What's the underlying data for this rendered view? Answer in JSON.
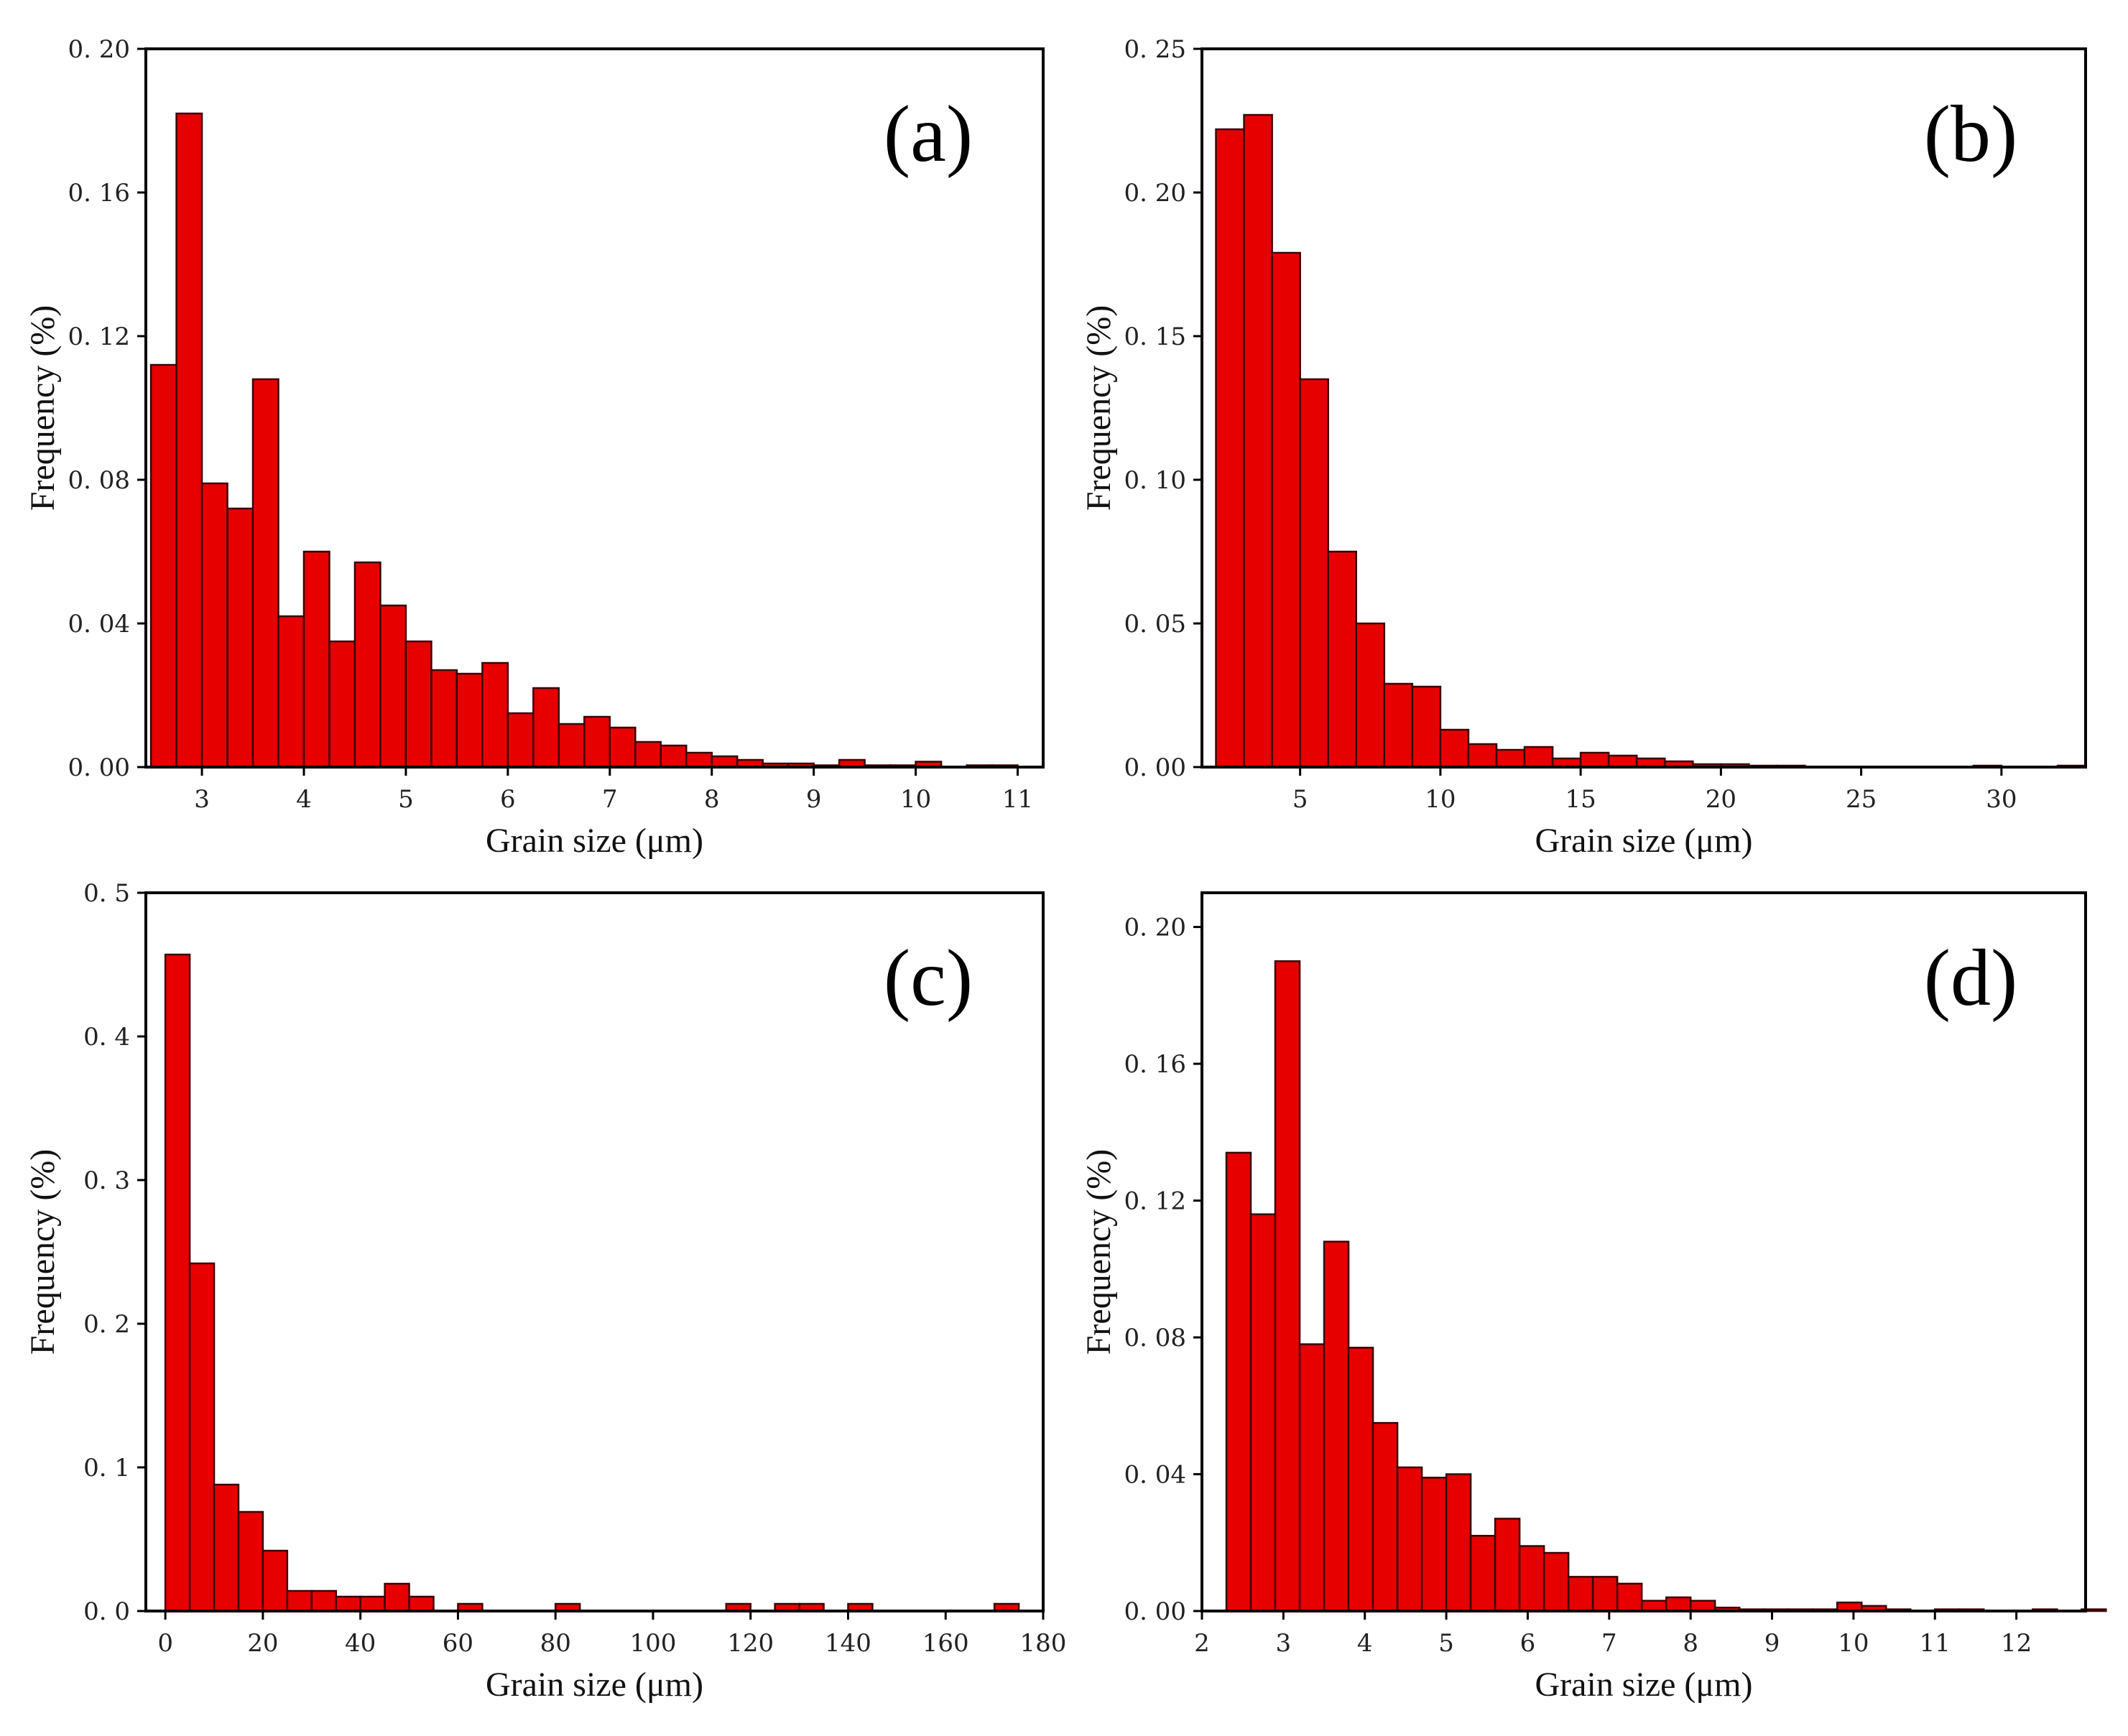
{
  "figure": {
    "panels": [
      "a",
      "b",
      "c",
      "d"
    ]
  },
  "chart_data": [
    {
      "id": "a",
      "type": "bar",
      "panel_label": "(a)",
      "xlabel": "Grain size (μm)",
      "ylabel": "Frequency (%)",
      "xlim": [
        2.45,
        11.25
      ],
      "ylim": [
        0,
        0.2
      ],
      "xticks": [
        3,
        4,
        5,
        6,
        7,
        8,
        9,
        10,
        11
      ],
      "xtick_labels": [
        "3",
        "4",
        "5",
        "6",
        "7",
        "8",
        "9",
        "10",
        "11"
      ],
      "yticks": [
        0,
        0.04,
        0.08,
        0.12,
        0.16,
        0.2
      ],
      "ytick_labels": [
        "0. 00",
        "0. 04",
        "0. 08",
        "0. 12",
        "0. 16",
        "0. 20"
      ],
      "bin_start": 2.5,
      "bin_width": 0.25,
      "values": [
        0.112,
        0.182,
        0.079,
        0.072,
        0.108,
        0.042,
        0.06,
        0.035,
        0.057,
        0.045,
        0.035,
        0.027,
        0.026,
        0.029,
        0.015,
        0.022,
        0.012,
        0.014,
        0.011,
        0.007,
        0.006,
        0.004,
        0.003,
        0.002,
        0.001,
        0.001,
        0.0005,
        0.002,
        0.0005,
        0.0005,
        0.0015,
        0.0,
        0.0005,
        0.0005
      ]
    },
    {
      "id": "b",
      "type": "bar",
      "panel_label": "(b)",
      "xlabel": "Grain size (μm)",
      "ylabel": "Frequency (%)",
      "xlim": [
        1.5,
        33
      ],
      "ylim": [
        0,
        0.25
      ],
      "xticks": [
        5,
        10,
        15,
        20,
        25,
        30
      ],
      "xtick_labels": [
        "5",
        "10",
        "15",
        "20",
        "25",
        "30"
      ],
      "yticks": [
        0,
        0.05,
        0.1,
        0.15,
        0.2,
        0.25
      ],
      "ytick_labels": [
        "0. 00",
        "0. 05",
        "0. 10",
        "0. 15",
        "0. 20",
        "0. 25"
      ],
      "bin_start": 2,
      "bin_width": 1,
      "values": [
        0.222,
        0.227,
        0.179,
        0.135,
        0.075,
        0.05,
        0.029,
        0.028,
        0.013,
        0.008,
        0.006,
        0.007,
        0.003,
        0.005,
        0.004,
        0.003,
        0.002,
        0.001,
        0.001,
        0.0005,
        0.0005,
        0.0,
        0.0,
        0.0,
        0.0,
        0.0,
        0.0,
        0.0005,
        0.0,
        0.0,
        0.0005
      ]
    },
    {
      "id": "c",
      "type": "bar",
      "panel_label": "(c)",
      "xlabel": "Grain size (μm)",
      "ylabel": "Frequency (%)",
      "xlim": [
        -4,
        180
      ],
      "ylim": [
        0,
        0.5
      ],
      "xticks": [
        0,
        20,
        40,
        60,
        80,
        100,
        120,
        140,
        160,
        180
      ],
      "xtick_labels": [
        "0",
        "20",
        "40",
        "60",
        "80",
        "100",
        "120",
        "140",
        "160",
        "180"
      ],
      "yticks": [
        0,
        0.1,
        0.2,
        0.3,
        0.4,
        0.5
      ],
      "ytick_labels": [
        "0. 0",
        "0. 1",
        "0. 2",
        "0. 3",
        "0. 4",
        "0. 5"
      ],
      "bin_start": 0,
      "bin_width": 5,
      "values": [
        0.457,
        0.242,
        0.088,
        0.069,
        0.042,
        0.014,
        0.014,
        0.01,
        0.01,
        0.019,
        0.01,
        0.0,
        0.005,
        0.0,
        0.0,
        0.0,
        0.005,
        0.0,
        0.0,
        0.0,
        0.0,
        0.0,
        0.0,
        0.005,
        0.0,
        0.005,
        0.005,
        0.0,
        0.005,
        0.0,
        0.0,
        0.0,
        0.0,
        0.0,
        0.005
      ]
    },
    {
      "id": "d",
      "type": "bar",
      "panel_label": "(d)",
      "xlabel": "Grain size (μm)",
      "ylabel": "Frequency (%)",
      "xlim": [
        2,
        12.85
      ],
      "ylim": [
        0,
        0.21
      ],
      "xticks": [
        2,
        3,
        4,
        5,
        6,
        7,
        8,
        9,
        10,
        11,
        12
      ],
      "xtick_labels": [
        "2",
        "3",
        "4",
        "5",
        "6",
        "7",
        "8",
        "9",
        "10",
        "11",
        "12"
      ],
      "yticks": [
        0,
        0.04,
        0.08,
        0.12,
        0.16,
        0.2
      ],
      "ytick_labels": [
        "0. 00",
        "0. 04",
        "0. 08",
        "0. 12",
        "0. 16",
        "0. 20"
      ],
      "bin_start": 2.3,
      "bin_width": 0.3,
      "values": [
        0.134,
        0.116,
        0.19,
        0.078,
        0.108,
        0.077,
        0.055,
        0.042,
        0.039,
        0.04,
        0.022,
        0.027,
        0.019,
        0.017,
        0.01,
        0.01,
        0.008,
        0.003,
        0.004,
        0.003,
        0.001,
        0.0005,
        0.0005,
        0.0005,
        0.0005,
        0.0025,
        0.0015,
        0.0005,
        0.0,
        0.0005,
        0.0005,
        0.0,
        0.0,
        0.0005,
        0.0,
        0.0005
      ]
    }
  ]
}
